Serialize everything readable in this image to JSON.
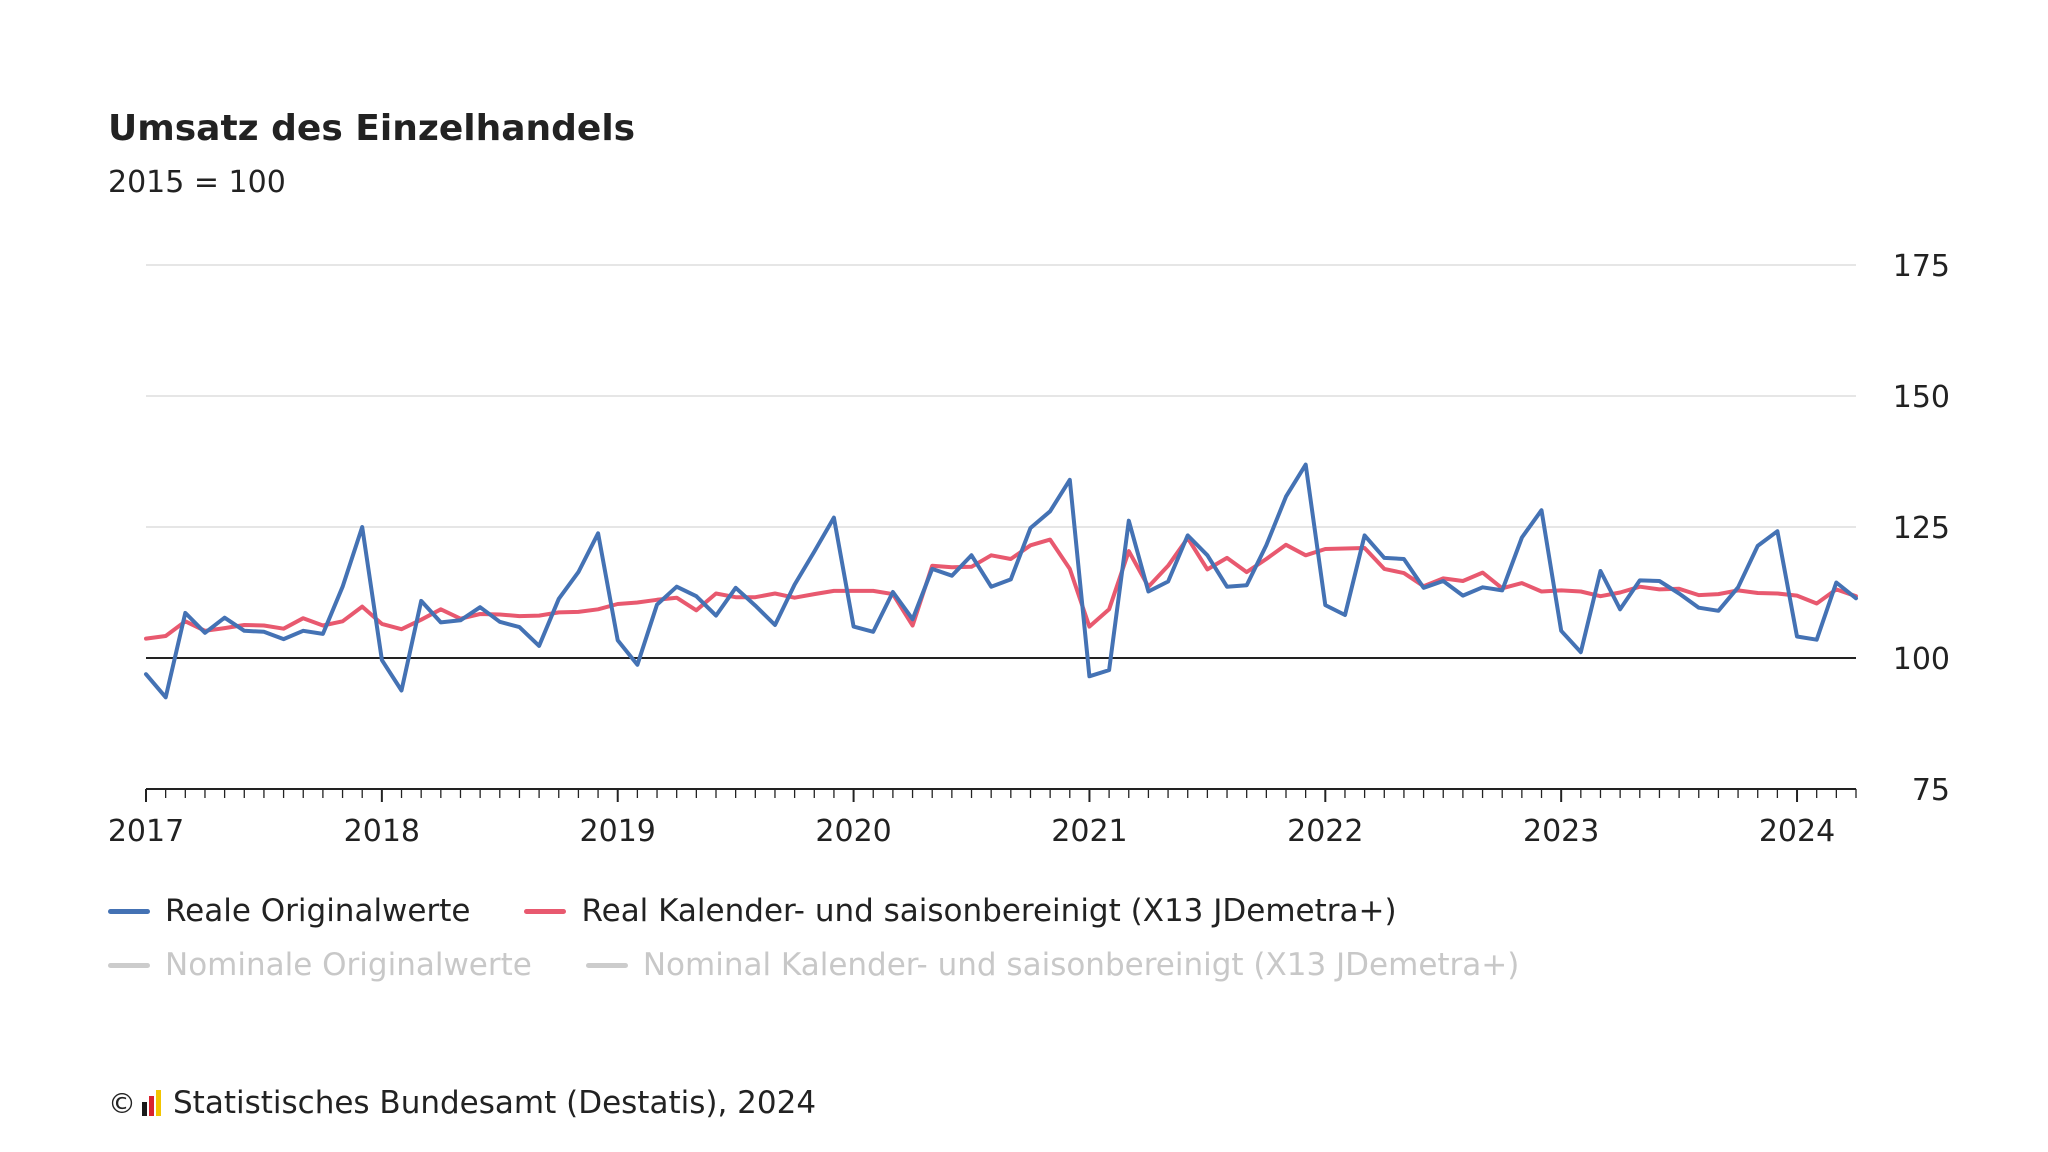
{
  "header": {
    "title": "Umsatz des Einzelhandels",
    "subtitle": "2015 = 100"
  },
  "legend": {
    "items": [
      {
        "label": "Reale Originalwerte",
        "color": "#4472b4",
        "active": true
      },
      {
        "label": "Real Kalender- und saisonbereinigt (X13 JDemetra+)",
        "color": "#e8596f",
        "active": true
      },
      {
        "label": "Nominale Originalwerte",
        "color": "#cccccc",
        "active": false
      },
      {
        "label": "Nominal Kalender- und saisonbereinigt (X13 JDemetra+)",
        "color": "#cccccc",
        "active": false
      }
    ]
  },
  "footer": {
    "copyright_symbol": "©",
    "source": "Statistisches Bundesamt (Destatis), 2024"
  },
  "chart_data": {
    "type": "line",
    "title": "Umsatz des Einzelhandels",
    "subtitle": "2015 = 100",
    "x_start": "2017-01",
    "x_end": "2024-04",
    "x_ticks": [
      "2017",
      "2018",
      "2019",
      "2020",
      "2021",
      "2022",
      "2023",
      "2024"
    ],
    "y_ticks": [
      75,
      100,
      125,
      150,
      175
    ],
    "ylim": [
      75,
      175
    ],
    "baseline": 100,
    "y_axis_position": "right",
    "grid": true,
    "legend_position": "bottom",
    "series": [
      {
        "name": "Reale Originalwerte",
        "color": "#4472b4",
        "values": [
          96.9,
          92.5,
          108.6,
          104.8,
          107.7,
          105.2,
          105.0,
          103.6,
          105.2,
          104.6,
          113.6,
          125.0,
          99.6,
          93.8,
          110.9,
          106.8,
          107.2,
          109.7,
          106.9,
          105.9,
          102.3,
          111.3,
          116.4,
          123.8,
          103.4,
          98.7,
          110.2,
          113.6,
          111.8,
          108.1,
          113.4,
          110.0,
          106.3,
          114.0,
          120.3,
          126.8,
          106.0,
          105.0,
          112.6,
          107.4,
          117.0,
          115.7,
          119.6,
          113.6,
          115.0,
          124.8,
          128.0,
          134.0,
          96.5,
          97.7,
          126.2,
          112.7,
          114.6,
          123.4,
          119.6,
          113.6,
          113.9,
          121.5,
          130.8,
          136.9,
          110.1,
          108.2,
          123.4,
          119.1,
          118.9,
          113.4,
          114.7,
          111.9,
          113.5,
          112.9,
          123.0,
          128.2,
          105.2,
          101.1,
          116.6,
          109.3,
          114.8,
          114.7,
          112.3,
          109.6,
          109.0,
          113.5,
          121.4,
          124.2,
          104.1,
          103.5,
          114.4,
          111.4
        ]
      },
      {
        "name": "Real Kalender- und saisonbereinigt (X13 JDemetra+)",
        "color": "#e8596f",
        "values": [
          103.7,
          104.2,
          107.0,
          105.2,
          105.7,
          106.3,
          106.2,
          105.6,
          107.6,
          106.2,
          107.0,
          109.8,
          106.5,
          105.5,
          107.3,
          109.3,
          107.5,
          108.4,
          108.3,
          108.0,
          108.1,
          108.7,
          108.8,
          109.3,
          110.3,
          110.6,
          111.1,
          111.5,
          109.1,
          112.3,
          111.6,
          111.6,
          112.3,
          111.5,
          112.2,
          112.8,
          112.8,
          112.8,
          112.2,
          106.2,
          117.6,
          117.3,
          117.4,
          119.6,
          118.9,
          121.5,
          122.6,
          117.0,
          106.0,
          109.3,
          120.4,
          113.6,
          117.6,
          122.9,
          116.9,
          119.1,
          116.4,
          118.9,
          121.6,
          119.6,
          120.8,
          120.9,
          121.0,
          117.0,
          116.2,
          113.7,
          115.2,
          114.7,
          116.3,
          113.3,
          114.3,
          112.7,
          112.9,
          112.7,
          111.8,
          112.5,
          113.6,
          113.1,
          113.2,
          112.0,
          112.2,
          112.9,
          112.4,
          112.3,
          111.9,
          110.4,
          113.1,
          111.8
        ]
      }
    ]
  }
}
